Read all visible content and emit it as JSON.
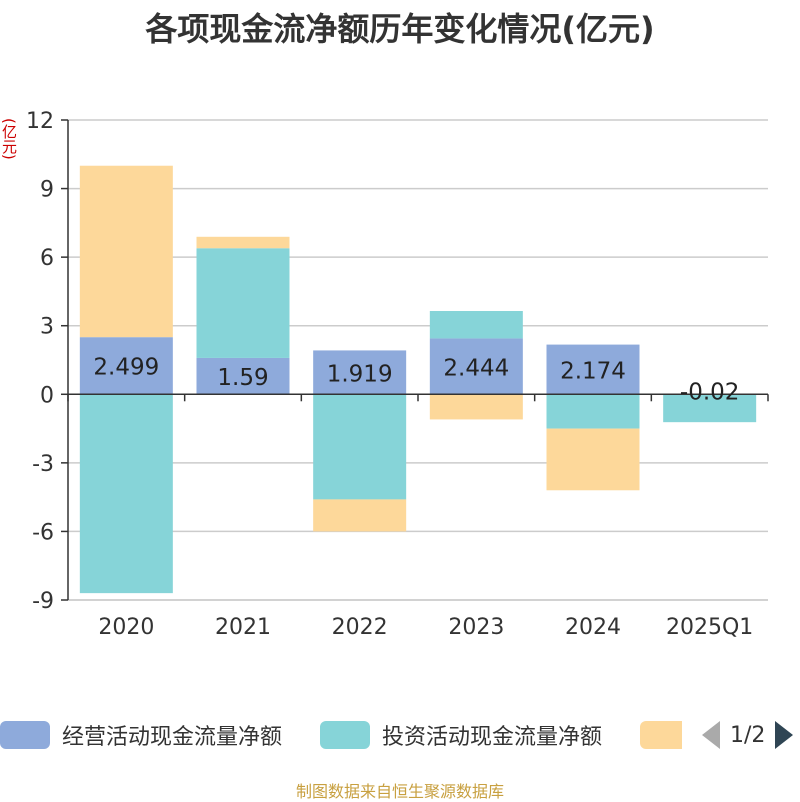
{
  "title": "各项现金流净额历年变化情况(亿元)",
  "source": "制图数据来自恒生聚源数据库",
  "legend_pager": "1/2",
  "chart_data": {
    "type": "bar",
    "stacked": true,
    "ylabel": "(亿元)",
    "ylim": [
      -9,
      12
    ],
    "yticks": [
      -9,
      -6,
      -3,
      0,
      3,
      6,
      9,
      12
    ],
    "categories": [
      "2020",
      "2021",
      "2022",
      "2023",
      "2024",
      "2025Q1"
    ],
    "series": [
      {
        "name": "经营活动现金流量净额",
        "color": "#8eaadb",
        "values": [
          2.499,
          1.59,
          1.919,
          2.444,
          2.174,
          -0.02
        ],
        "labels": [
          "2.499",
          "1.59",
          "1.919",
          "2.444",
          "2.174",
          "-0.02"
        ]
      },
      {
        "name": "投资活动现金流量净额",
        "color": "#86d4d8",
        "values": [
          -8.7,
          4.8,
          -4.6,
          1.2,
          -1.5,
          -1.2
        ]
      },
      {
        "name": "",
        "color": "#fdd89a",
        "values": [
          7.5,
          0.5,
          -1.4,
          -1.1,
          -2.7,
          0
        ]
      }
    ],
    "grid": true,
    "legend_position": "bottom"
  }
}
